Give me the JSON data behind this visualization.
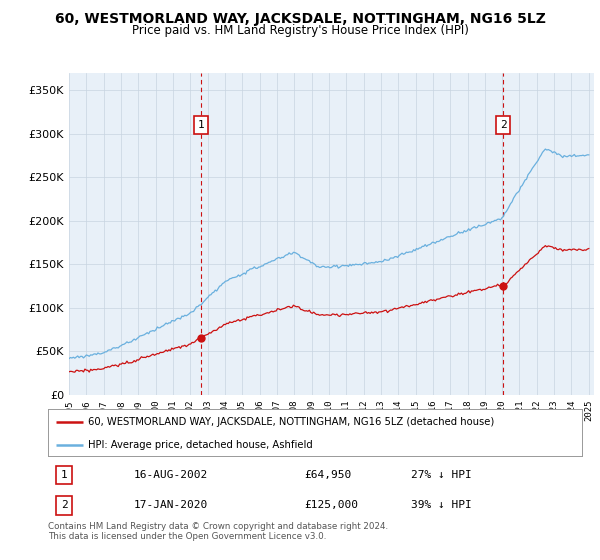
{
  "title": "60, WESTMORLAND WAY, JACKSDALE, NOTTINGHAM, NG16 5LZ",
  "subtitle": "Price paid vs. HM Land Registry's House Price Index (HPI)",
  "yticks": [
    0,
    50000,
    100000,
    150000,
    200000,
    250000,
    300000,
    350000
  ],
  "ylim": [
    0,
    370000
  ],
  "xlim": [
    1995,
    2025.3
  ],
  "hpi_color": "#6ab0de",
  "price_color": "#cc1111",
  "chart_bg": "#e8f0f8",
  "legend_label1": "60, WESTMORLAND WAY, JACKSDALE, NOTTINGHAM, NG16 5LZ (detached house)",
  "legend_label2": "HPI: Average price, detached house, Ashfield",
  "table_rows": [
    {
      "num": "1",
      "date": "16-AUG-2002",
      "price": "£64,950",
      "pct": "27% ↓ HPI"
    },
    {
      "num": "2",
      "date": "17-JAN-2020",
      "price": "£125,000",
      "pct": "39% ↓ HPI"
    }
  ],
  "footer": "Contains HM Land Registry data © Crown copyright and database right 2024.\nThis data is licensed under the Open Government Licence v3.0.",
  "background_color": "#ffffff",
  "grid_color": "#c8d4e0",
  "sale1_yr": 2002.62,
  "sale1_price": 64950,
  "sale2_yr": 2020.05,
  "sale2_price": 125000
}
